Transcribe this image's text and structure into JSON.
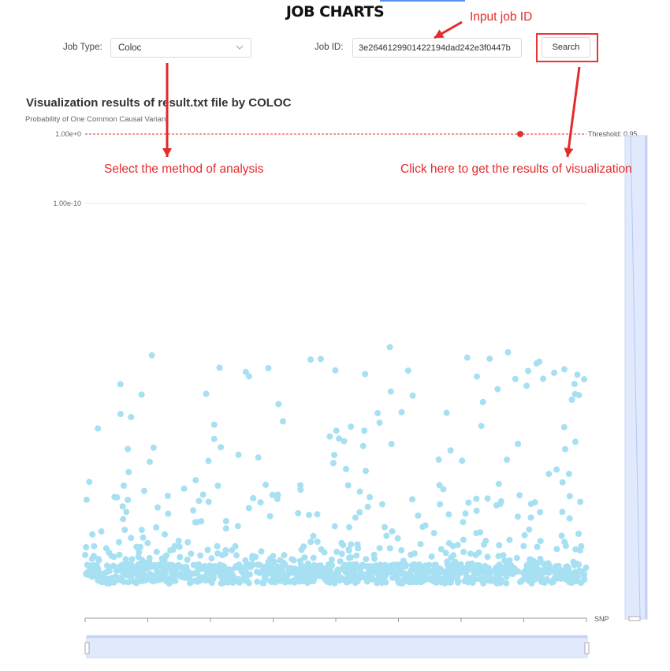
{
  "page": {
    "title": "JOB CHARTS"
  },
  "form": {
    "job_type_label": "Job Type:",
    "job_type_value": "Coloc",
    "job_id_label": "Job ID:",
    "job_id_value": "3e2646129901422194dad242e3f0447b",
    "search_label": "Search"
  },
  "annotations": {
    "input_job_id": "Input job ID",
    "select_method": "Select the method of analysis",
    "click_here": "Click here to get the results of visualization"
  },
  "colors": {
    "points": "#a6e0f2",
    "threshold": "#e03030",
    "annotation": "#e52a2a",
    "zoom": "#d4e0fb"
  },
  "chart_data": {
    "type": "scatter",
    "title": "Visualization results of result.txt file by COLOC",
    "subtitle": "Probability of One Common Causal Variant",
    "xlabel": "SNP",
    "ylabel": "",
    "y_ticks": [
      "1.00e+0",
      "1.00e-10"
    ],
    "y_scale": "log",
    "threshold": {
      "value": 0.95,
      "label": "Threshold: 0.95"
    },
    "grid": true,
    "zoom_sliders": [
      "horizontal-bottom",
      "vertical-right"
    ],
    "note": "Several thousand SNP points; most lie near a low baseline band with scattered higher values."
  }
}
